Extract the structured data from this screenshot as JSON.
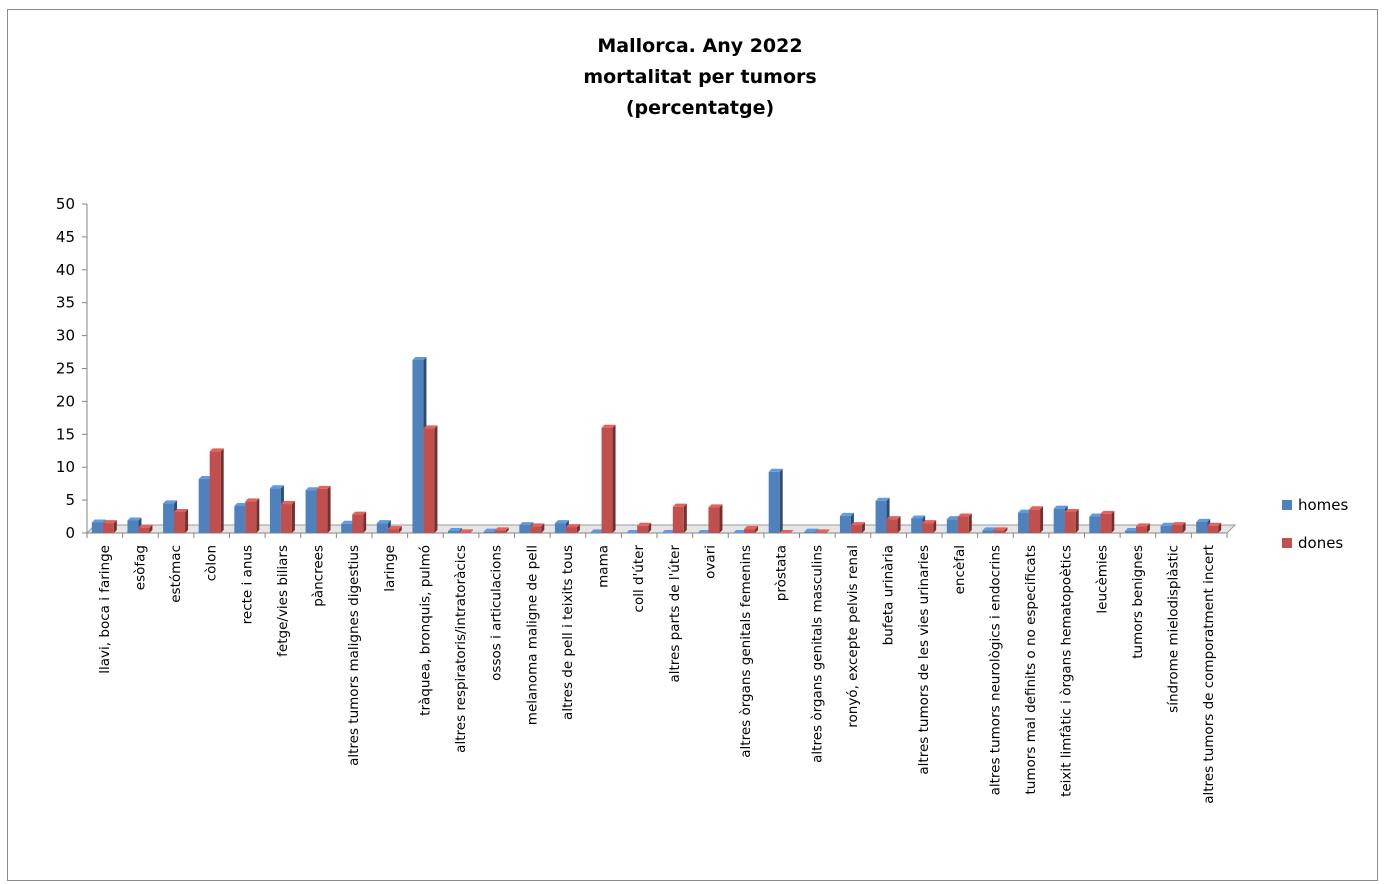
{
  "chart_data": {
    "type": "bar",
    "title_lines": [
      "Mallorca.  Any 2022",
      "mortalitat per tumors",
      "(percentatge)"
    ],
    "xlabel": "",
    "ylabel": "",
    "ylim": [
      0,
      50
    ],
    "yticks": [
      0,
      5,
      10,
      15,
      20,
      25,
      30,
      35,
      40,
      45,
      50
    ],
    "grid": false,
    "legend_position": "right",
    "categories": [
      "llavi, boca i faringe",
      "esòfag",
      "estómac",
      "còlon",
      "recte i anus",
      "fetge/vies biliars",
      "pàncrees",
      "altres tumors malignes digestius",
      "laringe",
      "tràquea, bronquis, pulmó",
      "altres respiratoris/intratoràcics",
      "ossos i articulacions",
      "melanoma maligne de pell",
      "altres de pell i teixits tous",
      "mama",
      "coll d'úter",
      "altres parts de l'úter",
      "ovari",
      "altres òrgans genitals femenins",
      "pròstata",
      "altres òrgans genitals masculins",
      "ronyó, excepte pelvis renal",
      "bufeta urinària",
      "altres tumors de les vies urinaries",
      "encèfal",
      "altres tumors neurològics i endocrins",
      "tumors mal definits o no especificats",
      "teixit limfàtic i òrgans hematopoètics",
      "leucèmies",
      "tumors benignes",
      "síndrome mielodisplàstic",
      "altres tumors de comporatment incert"
    ],
    "series": [
      {
        "name": "homes",
        "color": "#4f81bd",
        "values": [
          1.6,
          1.9,
          4.5,
          8.2,
          4.1,
          6.8,
          6.5,
          1.4,
          1.5,
          26.3,
          0.3,
          0.2,
          1.2,
          1.5,
          0.1,
          0.0,
          0.0,
          0.0,
          0.0,
          9.3,
          0.2,
          2.6,
          4.9,
          2.2,
          2.1,
          0.4,
          3.1,
          3.7,
          2.5,
          0.3,
          1.1,
          1.7
        ]
      },
      {
        "name": "dones",
        "color": "#c0504d",
        "values": [
          1.5,
          0.8,
          3.2,
          12.4,
          4.8,
          4.4,
          6.7,
          2.8,
          0.6,
          15.9,
          0.1,
          0.4,
          1.0,
          0.9,
          16.0,
          1.1,
          4.0,
          3.9,
          0.6,
          0.0,
          0.1,
          1.2,
          2.1,
          1.5,
          2.5,
          0.4,
          3.6,
          3.2,
          2.9,
          1.0,
          1.2,
          1.1
        ]
      }
    ]
  }
}
